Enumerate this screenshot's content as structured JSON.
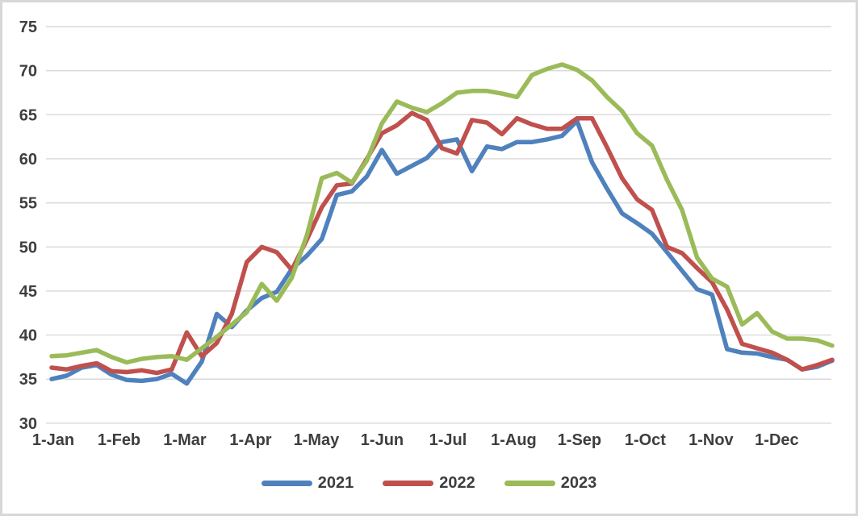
{
  "window": {
    "background": "#ffffff",
    "border_color": "#d7d7d7"
  },
  "colors": {
    "gridline": "#d9d9d9",
    "tick_text": "#3e3e3e",
    "series_2021": "#4F81BD",
    "series_2022": "#C0504D",
    "series_2023": "#9BBB59"
  },
  "chart_data": {
    "type": "line",
    "title": "",
    "xlabel": "",
    "ylabel": "",
    "grid": true,
    "x_axis": {
      "kind": "weekly-categorical",
      "num_points": 53,
      "tick_labels": [
        "1-Jan",
        "1-Feb",
        "1-Mar",
        "1-Apr",
        "1-May",
        "1-Jun",
        "1-Jul",
        "1-Aug",
        "1-Sep",
        "1-Oct",
        "1-Nov",
        "1-Dec"
      ]
    },
    "y_axis": {
      "min": 30,
      "max": 75,
      "step": 5,
      "tick_labels": [
        "30",
        "35",
        "40",
        "45",
        "50",
        "55",
        "60",
        "65",
        "70",
        "75"
      ]
    },
    "legend": {
      "position": "bottom-center",
      "entries": [
        "2021",
        "2022",
        "2023"
      ]
    },
    "series": [
      {
        "name": "2021",
        "color": "#4F81BD",
        "values": [
          35.0,
          35.4,
          36.3,
          36.6,
          35.5,
          34.9,
          34.8,
          35.0,
          35.6,
          34.5,
          37.0,
          42.4,
          40.9,
          42.8,
          44.2,
          44.9,
          47.5,
          49.0,
          50.9,
          55.9,
          56.3,
          58.0,
          61.0,
          58.3,
          59.2,
          60.1,
          61.9,
          62.2,
          58.6,
          61.4,
          61.1,
          61.9,
          61.9,
          62.2,
          62.6,
          64.3,
          59.6,
          56.6,
          53.8,
          52.7,
          51.5,
          49.4,
          47.3,
          45.2,
          44.6,
          38.4,
          38.0,
          37.9,
          37.5,
          37.2,
          36.1,
          36.4,
          37.1
        ]
      },
      {
        "name": "2022",
        "color": "#C0504D",
        "values": [
          36.3,
          36.1,
          36.5,
          36.8,
          35.9,
          35.8,
          36.0,
          35.7,
          36.1,
          40.3,
          37.6,
          39.1,
          42.4,
          48.3,
          50.0,
          49.4,
          47.4,
          50.8,
          54.5,
          57.0,
          57.2,
          60.0,
          62.9,
          63.8,
          65.2,
          64.4,
          61.2,
          60.6,
          64.4,
          64.1,
          62.8,
          64.6,
          63.9,
          63.4,
          63.4,
          64.6,
          64.6,
          61.3,
          57.8,
          55.4,
          54.2,
          50.0,
          49.3,
          47.6,
          46.0,
          42.9,
          39.0,
          38.5,
          38.0,
          37.2,
          36.1,
          36.6,
          37.2
        ]
      },
      {
        "name": "2023",
        "color": "#9BBB59",
        "values": [
          37.6,
          37.7,
          38.0,
          38.3,
          37.5,
          36.9,
          37.3,
          37.5,
          37.6,
          37.2,
          38.5,
          39.8,
          41.2,
          42.6,
          45.8,
          43.9,
          46.5,
          51.3,
          57.8,
          58.4,
          57.3,
          59.8,
          64.0,
          66.5,
          65.8,
          65.3,
          66.3,
          67.5,
          67.7,
          67.7,
          67.4,
          67.0,
          69.5,
          70.2,
          70.7,
          70.1,
          68.9,
          67.0,
          65.4,
          62.9,
          61.5,
          57.6,
          54.2,
          48.8,
          46.4,
          45.5,
          41.2,
          42.5,
          40.4,
          39.6,
          39.6,
          39.4,
          38.8
        ]
      }
    ]
  },
  "legend_ui": {
    "item_2021": "2021",
    "item_2022": "2022",
    "item_2023": "2023"
  }
}
